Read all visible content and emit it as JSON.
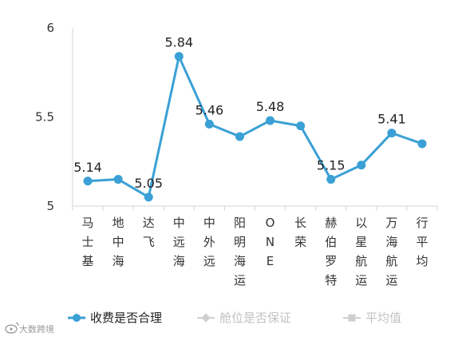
{
  "chart_data": {
    "type": "line",
    "categories": [
      "马士基",
      "地中海",
      "达飞",
      "中远海",
      "中外远",
      "阳明海运",
      "ONE",
      "长荣",
      "赫伯罗特",
      "以星航运",
      "万海航运",
      "行平均"
    ],
    "series": [
      {
        "name": "收费是否合理",
        "values": [
          5.14,
          5.15,
          5.05,
          5.84,
          5.46,
          5.39,
          5.48,
          5.45,
          5.15,
          5.23,
          5.41,
          5.35
        ],
        "color": "#3aa0d5",
        "data_labels": [
          "5.14",
          "",
          "5.05",
          "5.84",
          "5.46",
          "",
          "5.48",
          "",
          "5.15",
          "",
          "5.41",
          ""
        ]
      }
    ],
    "legend": {
      "placement": "bottom",
      "entries": [
        {
          "name": "收费是否合理",
          "color": "#3aa0d5",
          "active": true
        },
        {
          "name": "舱位是否保证",
          "color": "#cfcfcf",
          "active": false
        },
        {
          "name": "平均值",
          "color": "#cfcfcf",
          "active": false
        }
      ]
    },
    "ylim": [
      5,
      6
    ],
    "yticks": [
      "6",
      "5.5",
      "5"
    ],
    "grid": false,
    "title": "",
    "xlabel": "",
    "ylabel": ""
  },
  "watermark": {
    "text": "大数跨境",
    "icon": "weibo-logo-icon"
  }
}
